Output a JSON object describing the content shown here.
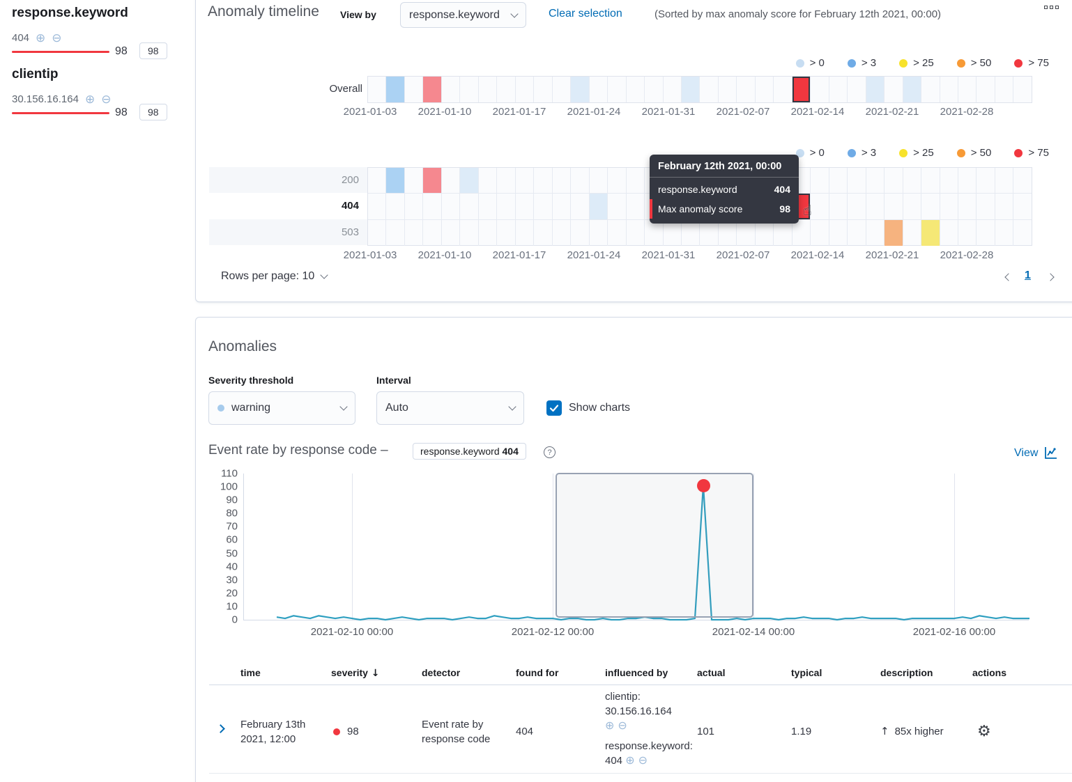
{
  "sidebar": {
    "groups": [
      {
        "field": "response.keyword",
        "value": "404",
        "score": "98",
        "badge": "98"
      },
      {
        "field": "clientip",
        "value": "30.156.16.164",
        "score": "98",
        "badge": "98"
      }
    ]
  },
  "timeline": {
    "title": "Anomaly timeline",
    "view_by_label": "View by",
    "view_by_value": "response.keyword",
    "clear_selection_label": "Clear selection",
    "sorted_note": "(Sorted by max anomaly score for February 12th 2021, 00:00)",
    "overall_label": "Overall",
    "rows_per_page_label": "Rows per page: 10",
    "page_number": "1",
    "legend": [
      {
        "label": "> 0",
        "color": "#c7ddf2"
      },
      {
        "label": "> 3",
        "color": "#6fabe6"
      },
      {
        "label": "> 25",
        "color": "#f7e22b"
      },
      {
        "label": "> 50",
        "color": "#f79a36"
      },
      {
        "label": "> 75",
        "color": "#f1373f"
      }
    ]
  },
  "tooltip": {
    "title": "February 12th 2021, 00:00",
    "rows": [
      {
        "label": "response.keyword",
        "value": "404"
      },
      {
        "label": "Max anomaly score",
        "value": "98",
        "marker_color": "#f1373f"
      }
    ]
  },
  "anomalies": {
    "title": "Anomalies",
    "severity_label": "Severity threshold",
    "severity_value": "warning",
    "severity_dot_color": "#a6cbec",
    "interval_label": "Interval",
    "interval_value": "Auto",
    "show_charts_label": "Show charts",
    "chart_heading": "Event rate by response code –",
    "chart_badge_field": "response.keyword",
    "chart_badge_value": "404",
    "view_label": "View"
  },
  "table": {
    "headers": [
      "time",
      "severity",
      "detector",
      "found for",
      "influenced by",
      "actual",
      "typical",
      "description",
      "actions"
    ],
    "rows": [
      {
        "time": "February 13th 2021, 12:00",
        "severity": "98",
        "severity_color": "#f1373f",
        "detector": "Event rate by response code",
        "found_for": "404",
        "influenced_by": [
          {
            "field": "clientip",
            "value": "30.156.16.164"
          },
          {
            "field": "response.keyword",
            "value": "404"
          }
        ],
        "actual": "101",
        "typical": "1.19",
        "description": "85x higher"
      }
    ]
  },
  "chart_data": [
    {
      "type": "heatmap",
      "title": "Anomaly timeline — Overall",
      "x_labels": [
        "2021-01-03",
        "2021-01-10",
        "2021-01-17",
        "2021-01-24",
        "2021-01-31",
        "2021-02-07",
        "2021-02-14",
        "2021-02-21",
        "2021-02-28"
      ],
      "n_cells": 36,
      "legend_buckets": [
        "> 0",
        "> 3",
        "> 25",
        "> 50",
        "> 75"
      ],
      "cell_colors": {
        "> 0": "#ddebf8",
        "> 3": "#abd2f3",
        "> 25": "#f5e876",
        "> 50": "#f6b37f",
        "> 75": "#f5888f",
        "selected": "#f1373f"
      },
      "lanes": [
        {
          "name": "Overall",
          "cells": [
            {
              "i": 1,
              "bucket": "> 3"
            },
            {
              "i": 3,
              "bucket": "> 75"
            },
            {
              "i": 11,
              "bucket": "> 0"
            },
            {
              "i": 17,
              "bucket": "> 0"
            },
            {
              "i": 23,
              "bucket": "> 75",
              "selected": true
            },
            {
              "i": 27,
              "bucket": "> 0"
            },
            {
              "i": 29,
              "bucket": "> 0"
            }
          ]
        }
      ]
    },
    {
      "type": "heatmap",
      "title": "Anomaly timeline — by response.keyword",
      "x_labels": [
        "2021-01-03",
        "2021-01-10",
        "2021-01-17",
        "2021-01-24",
        "2021-01-31",
        "2021-02-07",
        "2021-02-14",
        "2021-02-21",
        "2021-02-28"
      ],
      "n_cells": 36,
      "lanes": [
        {
          "name": "200",
          "cells": [
            {
              "i": 1,
              "bucket": "> 3"
            },
            {
              "i": 3,
              "bucket": "> 75"
            },
            {
              "i": 5,
              "bucket": "> 0"
            }
          ]
        },
        {
          "name": "404",
          "selected": true,
          "cells": [
            {
              "i": 12,
              "bucket": "> 0"
            },
            {
              "i": 23,
              "bucket": "> 75",
              "selected": true
            }
          ]
        },
        {
          "name": "503",
          "cells": [
            {
              "i": 28,
              "bucket": "> 50"
            },
            {
              "i": 30,
              "bucket": "> 25"
            }
          ]
        }
      ]
    },
    {
      "type": "line",
      "title": "Event rate by response code – response.keyword 404",
      "ylabel": "",
      "ylim": [
        0,
        110
      ],
      "y_ticks": [
        0,
        10,
        20,
        30,
        40,
        50,
        60,
        70,
        80,
        90,
        100,
        110
      ],
      "x_ticks": [
        "2021-02-10 00:00",
        "2021-02-12 00:00",
        "2021-02-14 00:00",
        "2021-02-16 00:00"
      ],
      "line_color": "#2e9fc0",
      "values": [
        2,
        1,
        3,
        2,
        1,
        3,
        2,
        1,
        2,
        1,
        0,
        1,
        1,
        0,
        1,
        2,
        1,
        0,
        1,
        1,
        1,
        0,
        1,
        2,
        1,
        1,
        3,
        2,
        1,
        1,
        2,
        1,
        1,
        1,
        0,
        1,
        1,
        0,
        0,
        1,
        0,
        0,
        1,
        1,
        2,
        1,
        1,
        0,
        0,
        0,
        1,
        101,
        0,
        0,
        0,
        1,
        0,
        1,
        1,
        1,
        0,
        1,
        1,
        2,
        1,
        1,
        1,
        0,
        1,
        1,
        2,
        1,
        1,
        1,
        1,
        0,
        1,
        1,
        1,
        1,
        1,
        1,
        2,
        1,
        3,
        2,
        1,
        2,
        1,
        1,
        1
      ],
      "anomaly_point": {
        "index": 51,
        "value": 101,
        "color": "#f1373f"
      },
      "selection": {
        "from": "2021-02-12 00:00",
        "to": "2021-02-14 00:00"
      }
    }
  ]
}
